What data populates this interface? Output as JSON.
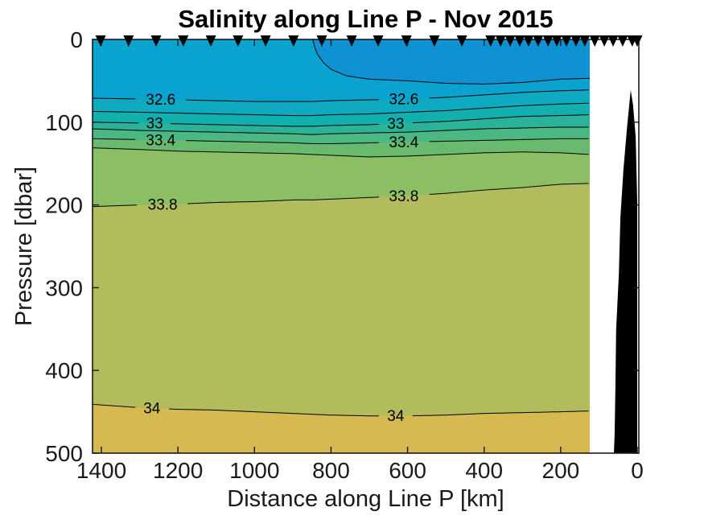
{
  "figure": {
    "title": "Salinity along Line P - Nov 2015",
    "xlabel": "Distance along Line P [km]",
    "ylabel": "Pressure [dbar]"
  },
  "axes": {
    "x_ticks_km": [
      1400,
      1200,
      1000,
      800,
      600,
      400,
      200,
      0
    ],
    "y_ticks_dbar": [
      0,
      100,
      200,
      300,
      400,
      500
    ],
    "x_direction": "reversed",
    "y_direction": "increasing-downward",
    "axis_color": "#1a1a1a",
    "background_color": "#ffffff"
  },
  "chart_data": {
    "type": "filled-contour",
    "title": "Salinity along Line P - Nov 2015",
    "xlabel": "Distance along Line P [km]",
    "ylabel": "Pressure [dbar]",
    "x_units": "km",
    "y_units": "dbar",
    "xlim_km": [
      1423,
      0
    ],
    "ylim_dbar": [
      0,
      500
    ],
    "data_extent_km": [
      1423,
      124
    ],
    "surface_band_color": "#0AA2CE",
    "fresh_region_color": "#0E92D4",
    "contour_line_color": "#000000",
    "contour_label_color": "#000000",
    "station_marker_color": "#000000",
    "bathymetry_color": "#000000",
    "fresh_region": {
      "description": "low-salinity surface pool (< 32.4) reaching the sea surface shoreward of ~850 km",
      "level": 32.4,
      "x_km": [
        848,
        838,
        820,
        800,
        760,
        700,
        600,
        500,
        400,
        300,
        200,
        124
      ],
      "depth_dbar": [
        0,
        16,
        28,
        36,
        44,
        48,
        50,
        53,
        54,
        52,
        48,
        47
      ]
    },
    "contours": [
      {
        "level": 32.6,
        "label_text": "32.6",
        "band_color_below": "#0DAAC2",
        "x_km": [
          1423,
          1300,
          1200,
          1100,
          1000,
          900,
          850,
          800,
          700,
          600,
          500,
          400,
          300,
          200,
          124
        ],
        "depth_dbar": [
          71,
          72,
          73,
          74,
          75,
          75,
          75,
          74,
          73,
          72,
          70,
          67,
          64,
          62,
          61
        ],
        "label_positions_km": [
          1245,
          610
        ]
      },
      {
        "level": 32.8,
        "label_text": "",
        "band_color_below": "#12AFAF",
        "x_km": [
          1423,
          1300,
          1200,
          1100,
          1000,
          900,
          850,
          800,
          700,
          600,
          500,
          400,
          300,
          200,
          124
        ],
        "depth_dbar": [
          87,
          88,
          89,
          90,
          91,
          92,
          92,
          91,
          90,
          88,
          86,
          83,
          80,
          78,
          77
        ],
        "label_positions_km": []
      },
      {
        "level": 33,
        "label_text": "33",
        "band_color_below": "#2BB399",
        "x_km": [
          1423,
          1300,
          1200,
          1100,
          1000,
          900,
          850,
          800,
          700,
          600,
          500,
          400,
          300,
          200,
          124
        ],
        "depth_dbar": [
          100,
          101,
          102,
          103,
          104,
          105,
          105,
          104,
          103,
          101,
          99,
          96,
          93,
          92,
          91
        ],
        "label_positions_km": [
          1261,
          631
        ]
      },
      {
        "level": 33.2,
        "label_text": "",
        "band_color_below": "#4BB782",
        "x_km": [
          1423,
          1300,
          1200,
          1100,
          1000,
          900,
          850,
          800,
          700,
          600,
          500,
          400,
          300,
          200,
          124
        ],
        "depth_dbar": [
          108,
          110,
          111,
          112,
          113,
          114,
          115,
          114,
          113,
          112,
          110,
          108,
          107,
          106,
          106
        ],
        "label_positions_km": []
      },
      {
        "level": 33.4,
        "label_text": "33.4",
        "band_color_below": "#69BA6F",
        "x_km": [
          1423,
          1300,
          1200,
          1100,
          1000,
          900,
          850,
          800,
          700,
          600,
          500,
          400,
          300,
          200,
          124
        ],
        "depth_dbar": [
          120,
          121,
          122,
          123,
          124,
          125,
          126,
          126,
          125,
          124,
          123,
          122,
          121,
          120,
          120
        ],
        "label_positions_km": [
          1245,
          610
        ]
      },
      {
        "level": 33.6,
        "label_text": "",
        "band_color_below": "#8CBE63",
        "x_km": [
          1423,
          1300,
          1200,
          1100,
          1000,
          900,
          850,
          800,
          700,
          600,
          500,
          400,
          300,
          200,
          124
        ],
        "depth_dbar": [
          131,
          133,
          135,
          136,
          137,
          138,
          139,
          140,
          142,
          141,
          139,
          137,
          136,
          137,
          139
        ],
        "label_positions_km": []
      },
      {
        "level": 33.8,
        "label_text": "33.8",
        "band_color_below": "#B3BC5C",
        "x_km": [
          1423,
          1300,
          1200,
          1100,
          1000,
          900,
          850,
          800,
          700,
          600,
          500,
          400,
          300,
          200,
          124
        ],
        "depth_dbar": [
          202,
          200,
          199,
          197,
          196,
          194,
          194,
          193,
          191,
          189,
          186,
          182,
          179,
          175,
          174
        ],
        "label_positions_km": [
          1240,
          610
        ]
      },
      {
        "level": 34,
        "label_text": "34",
        "band_color_below": "#D6B950",
        "x_km": [
          1423,
          1300,
          1200,
          1100,
          1000,
          900,
          850,
          800,
          700,
          600,
          500,
          400,
          300,
          200,
          124
        ],
        "depth_dbar": [
          441,
          445,
          447,
          448,
          450,
          452,
          453,
          454,
          455,
          455,
          454,
          452,
          451,
          450,
          449
        ],
        "label_positions_km": [
          1268,
          631
        ]
      }
    ],
    "station_markers_km": [
      1402,
      1329,
      1257,
      1186,
      1114,
      1043,
      971,
      898,
      824,
      746,
      677,
      603,
      530,
      458,
      383,
      357,
      332,
      307,
      284,
      259,
      233,
      210,
      185,
      160,
      137,
      111,
      86,
      63,
      38,
      13,
      0
    ],
    "bathymetry_outline_km_dbar": [
      [
        17,
        61
      ],
      [
        27,
        108
      ],
      [
        36,
        157
      ],
      [
        44,
        215
      ],
      [
        48,
        283
      ],
      [
        55,
        351
      ],
      [
        57,
        419
      ],
      [
        59,
        478
      ],
      [
        61,
        500
      ],
      [
        0,
        500
      ],
      [
        0,
        341
      ],
      [
        0,
        196
      ],
      [
        4,
        118
      ],
      [
        11,
        79
      ]
    ]
  }
}
